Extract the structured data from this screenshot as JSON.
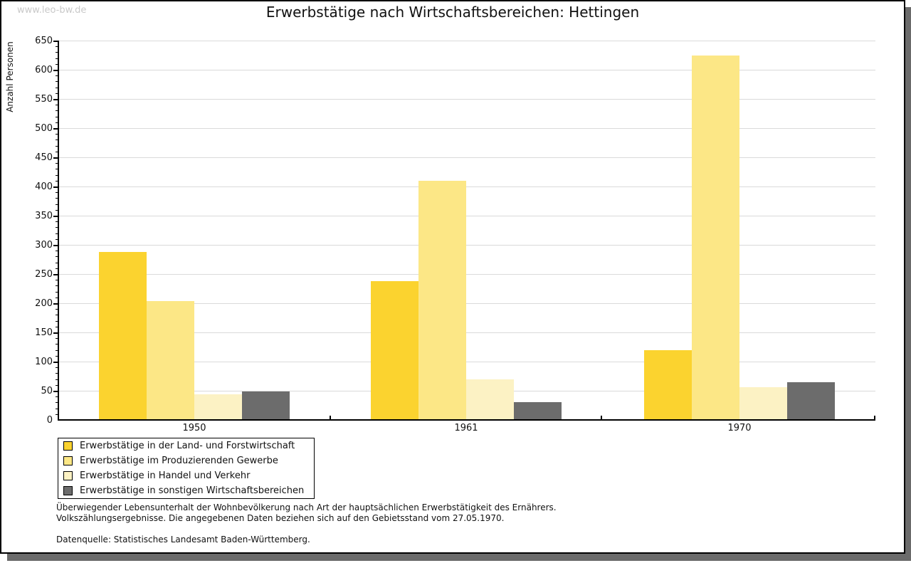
{
  "watermark": "www.leo-bw.de",
  "chart_data": {
    "type": "bar",
    "title": "Erwerbstätige nach Wirtschaftsbereichen: Hettingen",
    "ylabel": "Anzahl Personen",
    "xlabel": "",
    "ylim": [
      0,
      650
    ],
    "ytick_step": 50,
    "y_minor_step": 10,
    "grid": true,
    "legend_position": "bottom-left",
    "categories": [
      "1950",
      "1961",
      "1970"
    ],
    "series": [
      {
        "name": "Erwerbstätige in der Land- und Forstwirtschaft",
        "color": "#FBD32F",
        "values": [
          288,
          238,
          120
        ]
      },
      {
        "name": "Erwerbstätige im Produzierenden Gewerbe",
        "color": "#FCE786",
        "values": [
          204,
          410,
          625
        ]
      },
      {
        "name": "Erwerbstätige in Handel und Verkehr",
        "color": "#FCF2C4",
        "values": [
          45,
          70,
          57
        ]
      },
      {
        "name": "Erwerbstätige in sonstigen Wirtschaftsbereichen",
        "color": "#6C6C6C",
        "values": [
          50,
          31,
          65
        ]
      }
    ]
  },
  "footnotes": {
    "line1": "Überwiegender Lebensunterhalt der Wohnbevölkerung nach Art der hauptsächlichen Erwerbstätigkeit des Ernährers.",
    "line2": "Volkszählungsergebnisse. Die angegebenen Daten beziehen sich auf den Gebietsstand vom 27.05.1970.",
    "source": "Datenquelle: Statistisches Landesamt Baden-Württemberg."
  }
}
